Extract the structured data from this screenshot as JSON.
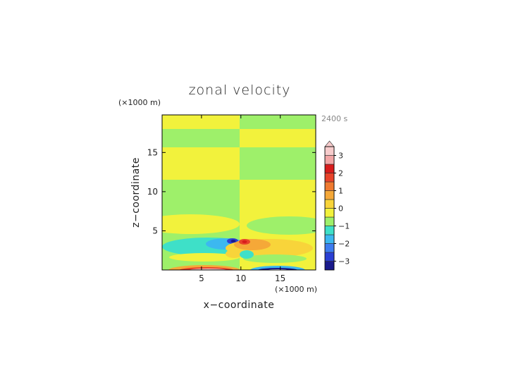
{
  "chart_data": {
    "type": "heatmap",
    "title": "zonal velocity",
    "xlabel": "x−coordinate",
    "ylabel": "z−coordinate",
    "x_unit": "(×1000 m)",
    "y_unit": "(×1000 m)",
    "time_label": "2400 s",
    "xlim": [
      0,
      19.5
    ],
    "ylim": [
      0,
      19.8
    ],
    "x_ticks": [
      5,
      10,
      15
    ],
    "y_ticks": [
      5,
      10,
      15
    ],
    "x_tick_labels": [
      "5",
      "10",
      "15"
    ],
    "y_tick_labels": [
      "5",
      "10",
      "15"
    ],
    "colorbar": {
      "levels": [
        -3.5,
        -3,
        -2.5,
        -2,
        -1.5,
        -1,
        -0.5,
        0,
        0.5,
        1,
        1.5,
        2,
        2.5,
        3,
        3.5
      ],
      "tick_values": [
        -3,
        -2,
        -1,
        0,
        1,
        2,
        3
      ],
      "tick_labels": [
        "−3",
        "−2",
        "−1",
        "0",
        "1",
        "2",
        "3"
      ],
      "colors": [
        "#1a1a8c",
        "#2a3fd4",
        "#3d7cf0",
        "#3cb8f0",
        "#3ee0c8",
        "#9ef06a",
        "#f2f23c",
        "#f8d43a",
        "#f5a838",
        "#ef7a30",
        "#e8432a",
        "#d81c1c",
        "#f2a6a6",
        "#f7cccc"
      ],
      "extend": "max"
    },
    "field_summary": [
      {
        "region": "upper layer z 5–20, x < 10",
        "value_band": "alternating 0 to 0.5 and −0.5 to 0"
      },
      {
        "region": "upper layer z 5–20, x > 10",
        "value_band": "opposite sign alternation"
      },
      {
        "region": "around (8.5, 3.8)",
        "value": -3
      },
      {
        "region": "around (10.5, 3.8)",
        "value": 3
      },
      {
        "region": "surface near x 4–8",
        "value": 3
      },
      {
        "region": "surface near x 13–17",
        "value": -3
      }
    ]
  }
}
